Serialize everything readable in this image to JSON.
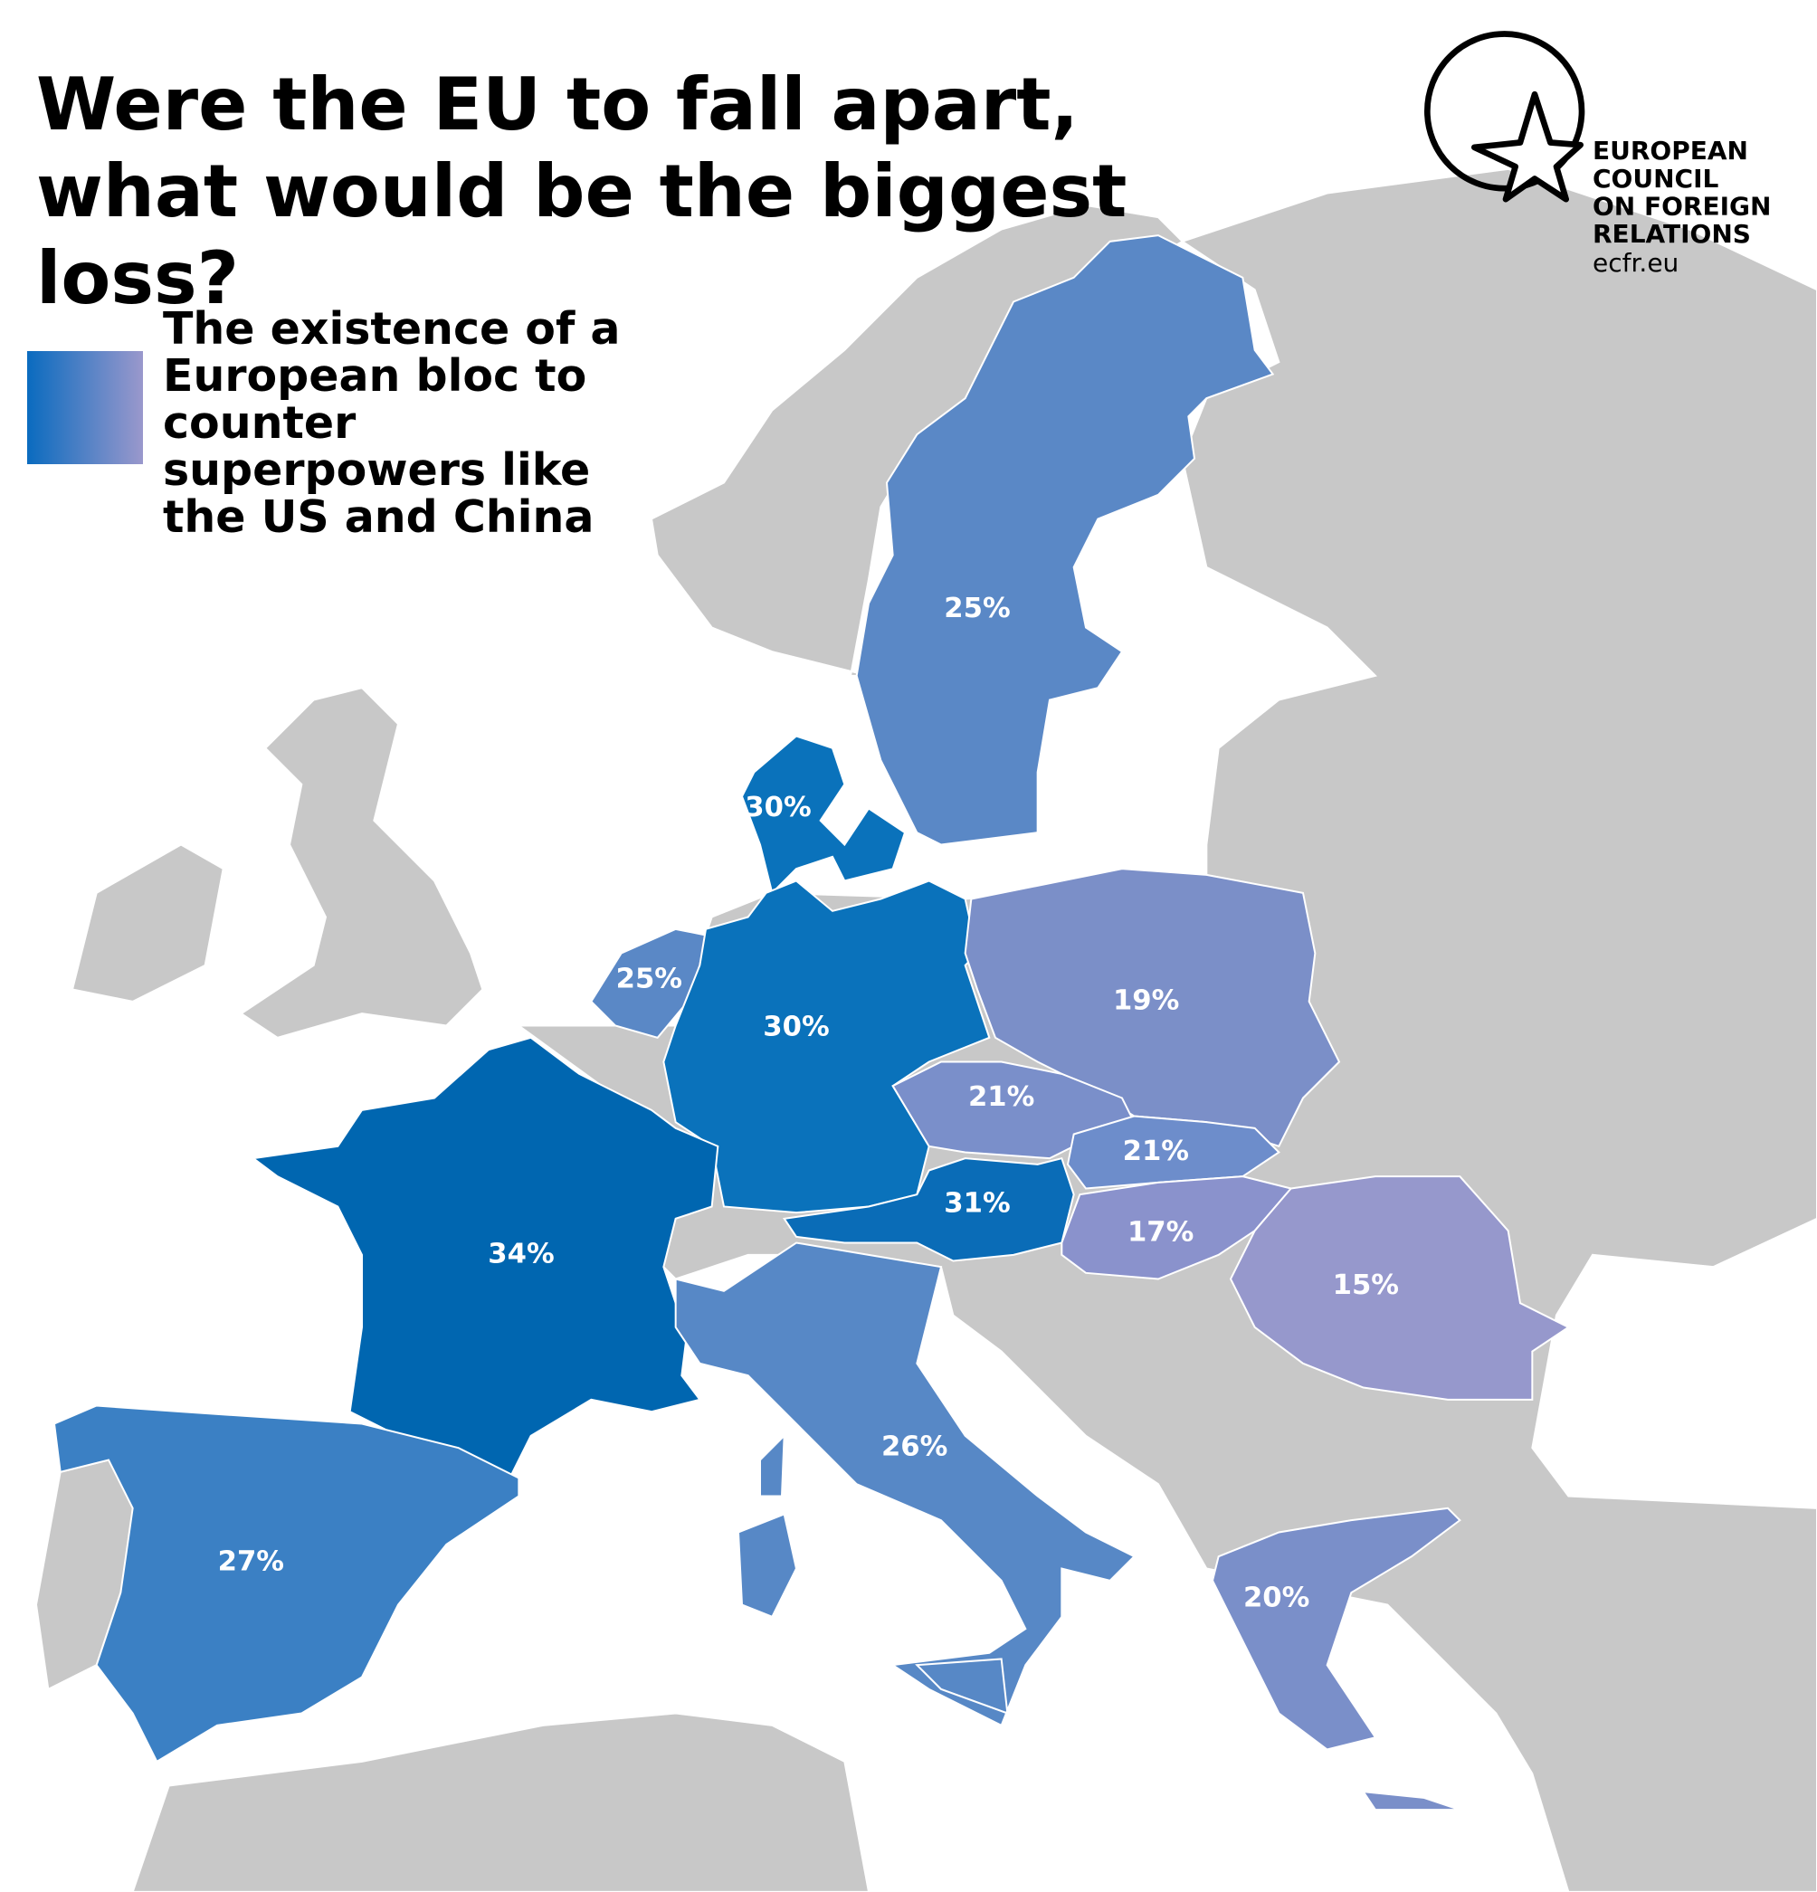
{
  "chart_data": {
    "type": "choropleth",
    "title": "Were the EU to fall apart, what would be the biggest loss?",
    "legend_label": "The existence of a European bloc to counter superpowers like the US and China",
    "legend_colors": [
      "#0a6bbf",
      "#9a98cc"
    ],
    "source_lines": [
      "EUROPEAN",
      "COUNCIL",
      "ON FOREIGN",
      "RELATIONS"
    ],
    "source_url": "ecfr.eu",
    "values": [
      25,
      30,
      25,
      30,
      19,
      21,
      21,
      31,
      17,
      15,
      34,
      26,
      27,
      20
    ],
    "value_labels": [
      "25%",
      "30%",
      "25%",
      "30%",
      "19%",
      "21%",
      "21%",
      "31%",
      "17%",
      "15%",
      "34%",
      "26%",
      "27%",
      "20%"
    ],
    "colors": [
      "#5a88c6",
      "#0a72bb",
      "#5a88c6",
      "#0a72bb",
      "#7b8fc8",
      "#7a8fca",
      "#6d8dcb",
      "#0a6cb7",
      "#8a92cc",
      "#9698cc",
      "#0066b0",
      "#5788c6",
      "#3b80c4",
      "#7a8fc9"
    ]
  }
}
